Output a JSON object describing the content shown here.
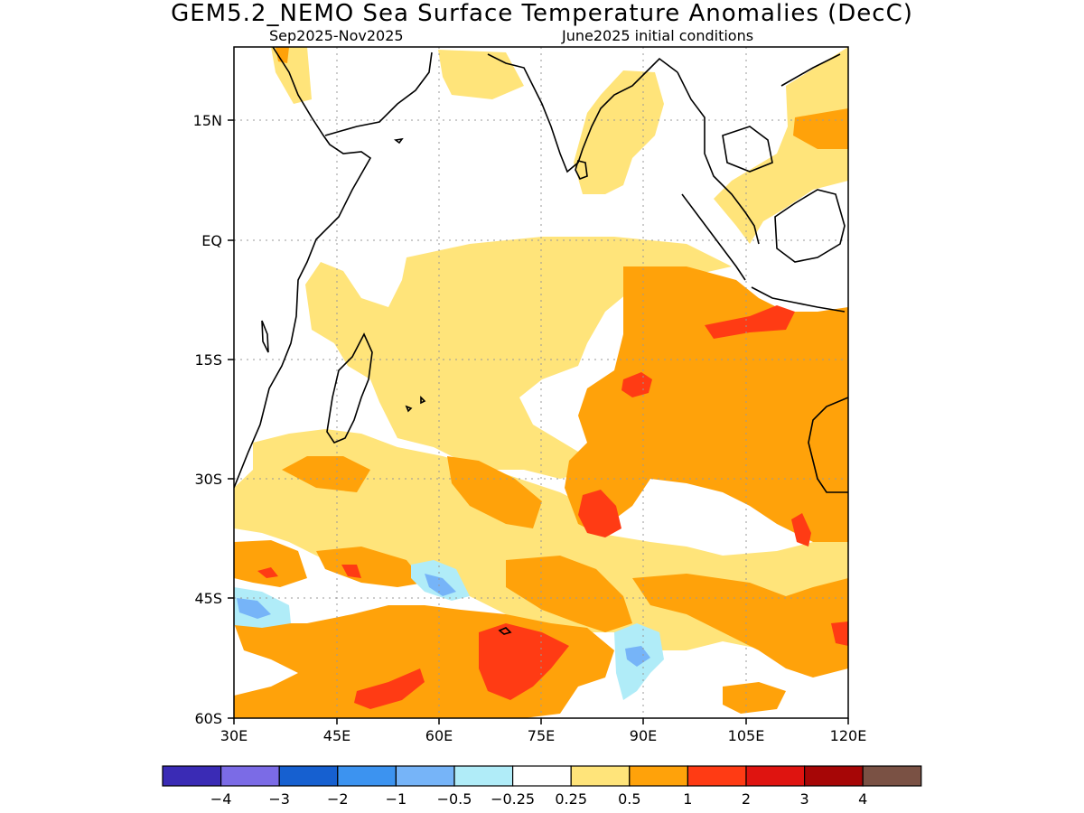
{
  "title": "GEM5.2_NEMO Sea Surface Temperature Anomalies (DecC)",
  "subtitle_period": "Sep2025-Nov2025",
  "subtitle_init": "June2025 initial conditions",
  "lat_labels": [
    "15N",
    "EQ",
    "15S",
    "30S",
    "45S",
    "60S"
  ],
  "lon_labels": [
    "30E",
    "45E",
    "60E",
    "75E",
    "90E",
    "105E",
    "120E"
  ],
  "colorbar": {
    "colors": [
      "#3a2bb5",
      "#7b6be6",
      "#1660d0",
      "#3c93f0",
      "#76b4f8",
      "#b0ecf8",
      "#ffffff",
      "#ffe47a",
      "#ffa20a",
      "#ff3b14",
      "#df1410",
      "#a60606",
      "#7a5144"
    ],
    "labels": [
      "-4",
      "-3",
      "-2",
      "-1",
      "-0.5",
      "-0.25",
      "0.25",
      "0.5",
      "1",
      "2",
      "3",
      "4"
    ]
  },
  "legend_colors": {
    "c025": "#ffe47a",
    "c05": "#ffa20a",
    "c1": "#ff3b14",
    "cneg025": "#b0ecf8",
    "cneg05": "#76b4f8"
  }
}
